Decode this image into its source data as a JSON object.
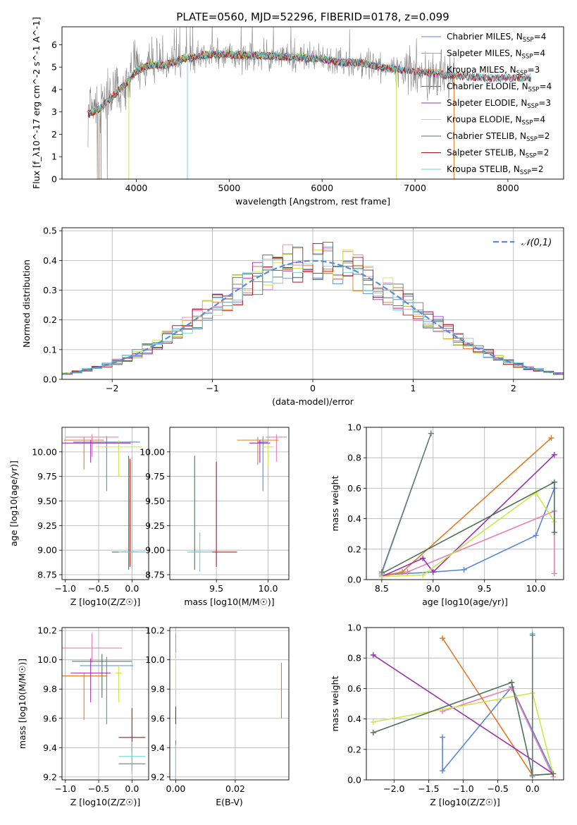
{
  "figure_title": "PLATE=0560, MJD=52296, FIBERID=0178, z=0.099",
  "colors": {
    "chabrier_miles": "#5b86d6",
    "salpeter_miles": "#e87fb2",
    "kroupa_miles": "#e07b28",
    "chabrier_elodie": "#777777",
    "salpeter_elodie": "#9b30b0",
    "kroupa_elodie": "#c9e84a",
    "chabrier_stelib": "#50705a",
    "salpeter_stelib": "#b01818",
    "kroupa_stelib": "#6fd2d6",
    "data": "#888888",
    "grid": "#b0b0b0",
    "normal_curve": "#5b8bd9"
  },
  "chart_data": [
    {
      "id": "spectrum",
      "type": "line",
      "xlabel": "wavelength [Angstrom, rest frame]",
      "ylabel": "Flux [f_λ10^-17 erg cm^-2 s^-1 A^-1]",
      "xlim": [
        3200,
        8600
      ],
      "ylim": [
        0,
        6.8
      ],
      "xticks": [
        4000,
        5000,
        6000,
        7000,
        8000
      ],
      "yticks": [
        0,
        1,
        2,
        3,
        4,
        5,
        6
      ],
      "grid": false,
      "legend": "top-right",
      "legend_entries": [
        {
          "label": "Chabrier MILES, N",
          "sub": "SSP",
          "suffix": "=4",
          "color_key": "chabrier_miles"
        },
        {
          "label": "Salpeter MILES, N",
          "sub": "SSP",
          "suffix": "=4",
          "color_key": "salpeter_miles"
        },
        {
          "label": "Kroupa MILES, N",
          "sub": "SSP",
          "suffix": "=3",
          "color_key": "kroupa_miles"
        },
        {
          "label": "Chabrier ELODIE, N",
          "sub": "SSP",
          "suffix": "=4",
          "color_key": "chabrier_elodie"
        },
        {
          "label": "Salpeter ELODIE, N",
          "sub": "SSP",
          "suffix": "=3",
          "color_key": "salpeter_elodie"
        },
        {
          "label": "Kroupa ELODIE, N",
          "sub": "SSP",
          "suffix": "=4",
          "color_key": "kroupa_elodie"
        },
        {
          "label": "Chabrier STELIB, N",
          "sub": "SSP",
          "suffix": "=2",
          "color_key": "chabrier_stelib"
        },
        {
          "label": "Salpeter STELIB, N",
          "sub": "SSP",
          "suffix": "=2",
          "color_key": "salpeter_stelib"
        },
        {
          "label": "Kroupa STELIB, N",
          "sub": "SSP",
          "suffix": "=2",
          "color_key": "kroupa_stelib"
        }
      ],
      "continuum": {
        "x": [
          3500,
          3600,
          3700,
          3800,
          3900,
          4000,
          4100,
          4200,
          4300,
          4400,
          4500,
          4600,
          4700,
          4800,
          5000,
          5200,
          5400,
          5600,
          5800,
          6000,
          6200,
          6400,
          6600,
          6800,
          7000,
          7200,
          7400,
          7600,
          7800,
          8000,
          8200
        ],
        "y": [
          2.9,
          3.1,
          3.5,
          3.9,
          4.3,
          4.8,
          5.0,
          5.1,
          5.05,
          5.2,
          5.35,
          5.4,
          5.5,
          5.55,
          5.55,
          5.5,
          5.5,
          5.45,
          5.4,
          5.35,
          5.2,
          5.2,
          5.0,
          4.9,
          4.8,
          4.7,
          4.6,
          4.55,
          4.5,
          4.5,
          4.5
        ]
      }
    },
    {
      "id": "residuals",
      "type": "area",
      "xlabel": "(data-model)/error",
      "ylabel": "Normed distribution",
      "xlim": [
        -2.5,
        2.5
      ],
      "ylim": [
        0,
        0.51
      ],
      "xticks": [
        -2,
        -1,
        0,
        1,
        2
      ],
      "yticks": [
        0.0,
        0.1,
        0.2,
        0.3,
        0.4,
        0.5
      ],
      "grid": true,
      "legend": "top-right",
      "legend_label": "𝒩(0,1)",
      "bin_width": 0.1
    },
    {
      "id": "age_vs_Z",
      "type": "scatter",
      "xlabel": "Z [log10(Z/Z☉)]",
      "ylabel": "age [log10(age/yr)]",
      "xlim": [
        -1.05,
        0.25
      ],
      "ylim": [
        8.7,
        10.25
      ],
      "xticks": [
        -1.0,
        -0.5,
        0.0
      ],
      "yticks": [
        8.75,
        9.0,
        9.25,
        9.5,
        9.75,
        10.0
      ],
      "grid": true,
      "errorbars": [
        {
          "color_key": "chabrier_miles",
          "x": -0.38,
          "xerr": 0.5,
          "y": 10.1,
          "yerr_lo": 0.5,
          "yerr_hi": 0.06
        },
        {
          "color_key": "salpeter_miles",
          "x": -0.6,
          "xerr": 0.4,
          "y": 10.15,
          "yerr_lo": 0.2,
          "yerr_hi": 0.03
        },
        {
          "color_key": "kroupa_miles",
          "x": -0.72,
          "xerr": 0.3,
          "y": 10.12,
          "yerr_lo": 0.3,
          "yerr_hi": 0.03
        },
        {
          "color_key": "kroupa_elodie",
          "x": -0.2,
          "xerr": 0.35,
          "y": 10.05,
          "yerr_lo": 0.3,
          "yerr_hi": 0.07
        },
        {
          "color_key": "salpeter_elodie",
          "x": -0.62,
          "xerr": 0.6,
          "y": 10.09,
          "yerr_lo": 0.2,
          "yerr_hi": 0.03
        },
        {
          "color_key": "chabrier_stelib",
          "x": -0.05,
          "xerr": 0.25,
          "y": 8.98,
          "yerr_lo": 0.18,
          "yerr_hi": 0.98
        },
        {
          "color_key": "salpeter_stelib",
          "x": -0.03,
          "xerr": 0.12,
          "y": 8.98,
          "yerr_lo": 0.15,
          "yerr_hi": 0.95
        },
        {
          "color_key": "kroupa_stelib",
          "x": 0.0,
          "xerr": 0.2,
          "y": 8.98,
          "yerr_lo": 0.17,
          "yerr_hi": 0.97
        }
      ]
    },
    {
      "id": "age_vs_mass",
      "type": "scatter",
      "xlabel": "mass [log10(M/M☉)]",
      "ylabel": "",
      "xlim": [
        9.05,
        10.2
      ],
      "ylim": [
        8.7,
        10.25
      ],
      "xticks": [
        9.5,
        10.0
      ],
      "yticks": [
        8.75,
        9.0,
        9.25,
        9.5,
        9.75,
        10.0
      ],
      "grid": true,
      "errorbars": [
        {
          "color_key": "chabrier_miles",
          "x": 9.95,
          "xerr": 0.05,
          "y": 10.1,
          "yerr_lo": 0.5,
          "yerr_hi": 0.06
        },
        {
          "color_key": "salpeter_miles",
          "x": 10.08,
          "xerr": 0.1,
          "y": 10.15,
          "yerr_lo": 0.25,
          "yerr_hi": 0.03
        },
        {
          "color_key": "kroupa_miles",
          "x": 9.9,
          "xerr": 0.2,
          "y": 10.12,
          "yerr_lo": 0.25,
          "yerr_hi": 0.03
        },
        {
          "color_key": "kroupa_elodie",
          "x": 10.0,
          "xerr": 0.05,
          "y": 10.05,
          "yerr_lo": 0.2,
          "yerr_hi": 0.05
        },
        {
          "color_key": "salpeter_elodie",
          "x": 9.92,
          "xerr": 0.1,
          "y": 10.09,
          "yerr_lo": 0.2,
          "yerr_hi": 0.03
        },
        {
          "color_key": "chabrier_stelib",
          "x": 9.29,
          "xerr": 0.05,
          "y": 8.98,
          "yerr_lo": 0.18,
          "yerr_hi": 0.98
        },
        {
          "color_key": "salpeter_stelib",
          "x": 9.5,
          "xerr": 0.2,
          "y": 8.98,
          "yerr_lo": 0.15,
          "yerr_hi": 0.92
        },
        {
          "color_key": "kroupa_stelib",
          "x": 9.34,
          "xerr": 0.12,
          "y": 8.98,
          "yerr_lo": 0.2,
          "yerr_hi": 0.2
        }
      ]
    },
    {
      "id": "weight_vs_age",
      "type": "line",
      "xlabel": "age [log10(age/yr)]",
      "ylabel": "mass weight",
      "xlim": [
        8.35,
        10.27
      ],
      "ylim": [
        0,
        1.0
      ],
      "xticks": [
        8.5,
        9.0,
        9.5,
        10.0
      ],
      "yticks": [
        0.0,
        0.2,
        0.4,
        0.6,
        0.8,
        1.0
      ],
      "grid": true,
      "series": [
        {
          "color_key": "chabrier_miles",
          "x": [
            8.5,
            9.0,
            9.3,
            10.0,
            10.18
          ],
          "y": [
            0.03,
            0.05,
            0.065,
            0.29,
            0.6
          ]
        },
        {
          "color_key": "salpeter_miles",
          "x": [
            8.5,
            8.75,
            10.18,
            10.18
          ],
          "y": [
            0.03,
            0.05,
            0.45,
            0.04
          ]
        },
        {
          "color_key": "kroupa_miles",
          "x": [
            8.5,
            8.7,
            10.15
          ],
          "y": [
            0.02,
            0.05,
            0.93
          ]
        },
        {
          "color_key": "salpeter_elodie",
          "x": [
            8.5,
            8.9,
            9.0,
            10.18
          ],
          "y": [
            0.02,
            0.14,
            0.05,
            0.82
          ]
        },
        {
          "color_key": "kroupa_elodie",
          "x": [
            8.5,
            8.9,
            10.0,
            10.18
          ],
          "y": [
            0.02,
            0.03,
            0.57,
            0.38
          ]
        },
        {
          "color_key": "chabrier_stelib",
          "x": [
            8.5,
            10.18,
            10.18
          ],
          "y": [
            0.04,
            0.64,
            0.31
          ]
        },
        {
          "color_key": "kroupa_stelib",
          "x": [
            8.5,
            8.98
          ],
          "y": [
            0.04,
            0.96
          ]
        },
        {
          "color_key": "chabrier_elodie",
          "x": [
            8.5,
            8.98
          ],
          "y": [
            0.05,
            0.96
          ]
        }
      ]
    },
    {
      "id": "mass_vs_Z",
      "type": "scatter",
      "xlabel": "Z [log10(Z/Z☉)]",
      "ylabel": "mass [log10(M/M☉)]",
      "xlim": [
        -1.05,
        0.25
      ],
      "ylim": [
        9.18,
        10.22
      ],
      "xticks": [
        -1.0,
        -0.5,
        0.0
      ],
      "yticks": [
        9.2,
        9.4,
        9.6,
        9.8,
        10.0,
        10.2
      ],
      "grid": true,
      "errorbars": [
        {
          "color_key": "salpeter_miles",
          "x": -0.6,
          "xerr": 0.45,
          "y": 10.08,
          "yerr_lo": 0.1,
          "yerr_hi": 0.1
        },
        {
          "color_key": "chabrier_stelib",
          "x": -0.45,
          "xerr": 0.45,
          "y": 9.99,
          "yerr_lo": 0.25,
          "yerr_hi": 0.05
        },
        {
          "color_key": "chabrier_miles",
          "x": -0.38,
          "xerr": 0.4,
          "y": 9.96,
          "yerr_lo": 0.4,
          "yerr_hi": 0.06
        },
        {
          "color_key": "kroupa_miles",
          "x": -0.72,
          "xerr": 0.35,
          "y": 9.89,
          "yerr_lo": 0.3,
          "yerr_hi": 0.02
        },
        {
          "color_key": "salpeter_elodie",
          "x": -0.62,
          "xerr": 0.3,
          "y": 9.91,
          "yerr_lo": 0.2,
          "yerr_hi": 0.1
        },
        {
          "color_key": "kroupa_elodie",
          "x": -0.2,
          "xerr": 0.05,
          "y": 9.91,
          "yerr_lo": 0.2,
          "yerr_hi": 0.05
        },
        {
          "color_key": "salpeter_stelib",
          "x": 0.0,
          "xerr": 0.2,
          "y": 9.47,
          "yerr_lo": 0.1,
          "yerr_hi": 0.2
        },
        {
          "color_key": "chabrier_elodie",
          "x": 0.0,
          "xerr": 0.2,
          "y": 9.29,
          "yerr_lo": 0.05,
          "yerr_hi": 0.1
        },
        {
          "color_key": "kroupa_stelib",
          "x": 0.0,
          "xerr": 0.2,
          "y": 9.34,
          "yerr_lo": 0.12,
          "yerr_hi": 0.1
        }
      ]
    },
    {
      "id": "mass_vs_ebv",
      "type": "scatter",
      "xlabel": "E(B-V)",
      "ylabel": "",
      "xlim": [
        -0.002,
        0.038
      ],
      "ylim": [
        9.18,
        10.22
      ],
      "xticks": [
        0.0,
        0.02
      ],
      "yticks": [
        9.2,
        9.4,
        9.6,
        9.8,
        10.0,
        10.2
      ],
      "grid": true,
      "errorbars": [
        {
          "color_key": "salpeter_miles",
          "x": 0.0,
          "y": 10.09,
          "yerr_lo": 0.1,
          "yerr_hi": 0.09
        },
        {
          "color_key": "kroupa_elodie",
          "x": 0.0,
          "y": 9.95,
          "yerr_lo": 0.15,
          "yerr_hi": 0.1
        },
        {
          "color_key": "salpeter_stelib",
          "x": 0.0,
          "y": 9.62,
          "yerr_lo": 0.06,
          "yerr_hi": 0.06
        },
        {
          "color_key": "chabrier_miles",
          "x": 0.0,
          "y": 9.35,
          "yerr_lo": 0.16,
          "yerr_hi": 0.1
        },
        {
          "color_key": "kroupa_stelib",
          "x": 0.0,
          "y": 9.32,
          "yerr_lo": 0.14,
          "yerr_hi": 0.1
        },
        {
          "color_key": "kroupa_miles",
          "x": 0.0355,
          "y": 9.79,
          "yerr_lo": 0.19,
          "yerr_hi": 0.19
        }
      ]
    },
    {
      "id": "weight_vs_Z",
      "type": "line",
      "xlabel": "Z [log10(Z/Z☉)]",
      "ylabel": "mass weight",
      "xlim": [
        -2.4,
        0.45
      ],
      "ylim": [
        0,
        1.0
      ],
      "xticks": [
        -2.0,
        -1.5,
        -1.0,
        -0.5,
        0.0
      ],
      "yticks": [
        0.0,
        0.2,
        0.4,
        0.6,
        0.8,
        1.0
      ],
      "grid": true,
      "series": [
        {
          "color_key": "chabrier_miles",
          "x": [
            -1.3,
            -1.3,
            -0.3,
            0.3
          ],
          "y": [
            0.28,
            0.06,
            0.61,
            0.04
          ]
        },
        {
          "color_key": "salpeter_miles",
          "x": [
            -1.3,
            -0.3,
            0.3
          ],
          "y": [
            0.45,
            0.6,
            0.02
          ]
        },
        {
          "color_key": "kroupa_miles",
          "x": [
            -1.3,
            0.0,
            0.3
          ],
          "y": [
            0.93,
            0.03,
            0.04
          ]
        },
        {
          "color_key": "salpeter_elodie",
          "x": [
            -2.3,
            0.3
          ],
          "y": [
            0.82,
            0.04
          ]
        },
        {
          "color_key": "kroupa_elodie",
          "x": [
            -2.3,
            0.0,
            0.3
          ],
          "y": [
            0.38,
            0.57,
            0.04
          ]
        },
        {
          "color_key": "chabrier_stelib",
          "x": [
            -2.3,
            -0.3,
            0.0,
            0.3
          ],
          "y": [
            0.31,
            0.64,
            0.03,
            0.04
          ]
        },
        {
          "color_key": "kroupa_stelib",
          "x": [
            0.0,
            0.0
          ],
          "y": [
            0.96,
            0.02
          ]
        },
        {
          "color_key": "chabrier_elodie",
          "x": [
            0.0,
            0.0
          ],
          "y": [
            0.95,
            0.03
          ]
        }
      ]
    }
  ]
}
